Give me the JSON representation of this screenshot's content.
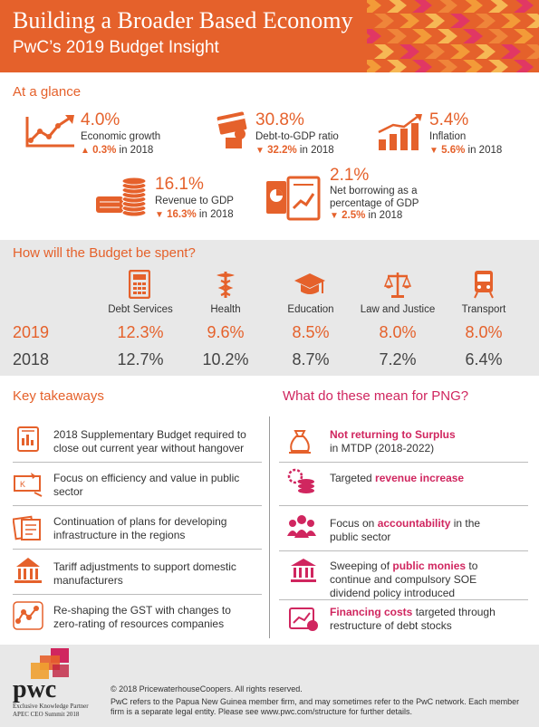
{
  "header": {
    "title": "Building a Broader Based Economy",
    "subtitle": "PwC’s 2019 Budget Insight"
  },
  "glance": {
    "title": "At a glance",
    "metrics": [
      {
        "value": "4.0%",
        "label": "Economic growth",
        "prev_value": "0.3%",
        "prev_suffix": "in 2018",
        "icon": "line-chart-icon",
        "direction": "up"
      },
      {
        "value": "30.8%",
        "label": "Debt-to-GDP ratio",
        "prev_value": "32.2%",
        "prev_suffix": "in 2018",
        "icon": "credit-card-icon",
        "direction": "down"
      },
      {
        "value": "5.4%",
        "label": "Inflation",
        "prev_value": "5.6%",
        "prev_suffix": "in 2018",
        "icon": "bar-chart-up-icon",
        "direction": "down"
      },
      {
        "value": "16.1%",
        "label": "Revenue to GDP",
        "prev_value": "16.3%",
        "prev_suffix": "in 2018",
        "icon": "coin-stacks-icon",
        "direction": "down"
      },
      {
        "value": "2.1%",
        "label_line1": "Net borrowing as a",
        "label_line2": "percentage of GDP",
        "prev_value": "2.5%",
        "prev_suffix": "in 2018",
        "icon": "report-chart-icon",
        "direction": "down"
      }
    ]
  },
  "budget": {
    "title": "How will the Budget be spent?",
    "year_2019": "2019",
    "year_2018": "2018",
    "categories": [
      {
        "name": "Debt Services",
        "v2019": "12.3%",
        "v2018": "12.7%",
        "icon": "calculator-icon"
      },
      {
        "name": "Health",
        "v2019": "9.6%",
        "v2018": "10.2%",
        "icon": "medical-caduceus-icon"
      },
      {
        "name": "Education",
        "v2019": "8.5%",
        "v2018": "8.7%",
        "icon": "graduation-cap-icon"
      },
      {
        "name": "Law and Justice",
        "v2019": "8.0%",
        "v2018": "7.2%",
        "icon": "scales-icon"
      },
      {
        "name": "Transport",
        "v2019": "8.0%",
        "v2018": "6.4%",
        "icon": "train-icon"
      }
    ]
  },
  "takeaways": {
    "title": "Key takeaways",
    "items": [
      {
        "line1": "2018 Supplementary Budget required to",
        "line2": "close out current year without hangover",
        "icon": "budget-document-icon"
      },
      {
        "line1": "Focus on efficiency and value in public",
        "line2": "sector",
        "icon": "money-bill-icon"
      },
      {
        "line1": "Continuation of plans for developing",
        "line2": "infrastructure in the regions",
        "icon": "blueprint-icon"
      },
      {
        "line1": "Tariff adjustments to support domestic",
        "line2": "manufacturers",
        "icon": "parliament-icon"
      },
      {
        "line1": "Re-shaping the GST with changes to",
        "line2": "zero-rating of resources companies",
        "icon": "network-icon"
      }
    ]
  },
  "png": {
    "title": "What do these mean for PNG?",
    "items": [
      {
        "bold": "Not returning to Surplus",
        "rest_line1": "",
        "line2": "in MTDP (2018-2022)",
        "icon": "money-bag-icon"
      },
      {
        "pre": "Targeted ",
        "bold": "revenue increase",
        "icon": "coins-gear-icon"
      },
      {
        "pre": "Focus on ",
        "bold": "accountability",
        "post": " in the",
        "line2": "public sector",
        "icon": "people-group-icon"
      },
      {
        "pre": "Sweeping of ",
        "bold": "public monies",
        "post": " to",
        "line2": "continue and compulsory SOE",
        "line3": "dividend policy introduced",
        "icon": "bank-building-icon"
      },
      {
        "bold": "Financing costs",
        "post": " targeted through",
        "line2": "restructure of debt stocks",
        "icon": "finance-report-icon"
      }
    ]
  },
  "footer": {
    "logo_text": "pwc",
    "partner_line1": "Exclusive Knowledge Partner",
    "partner_line2": "APEC CEO Summit 2018",
    "copyright": "© 2018 PricewaterhouseCoopers. All rights reserved.",
    "note_line1": "PwC refers to the Papua New Guinea member firm, and may sometimes refer to the PwC network. Each member",
    "note_line2": "firm is a separate legal entity. Please see www.pwc.com/structure for further details."
  },
  "colors": {
    "accent": "#e5612b",
    "pink": "#d0265f",
    "band": "#e8e8e8"
  }
}
